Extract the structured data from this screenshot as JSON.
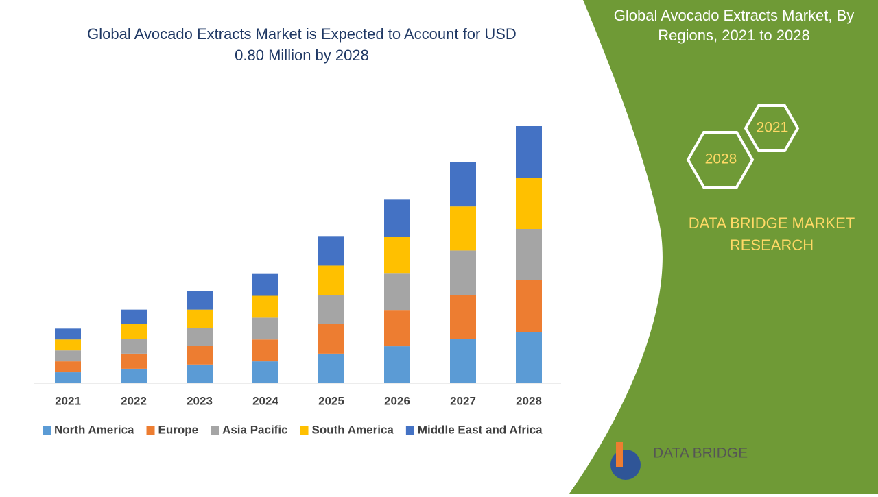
{
  "chart_data": {
    "type": "stacked-bar",
    "title": "Global Avocado Extracts Market is Expected to Account for USD 0.80 Million by 2028",
    "categories": [
      "2021",
      "2022",
      "2023",
      "2024",
      "2025",
      "2026",
      "2027",
      "2028"
    ],
    "series": [
      {
        "name": "North America",
        "color": "#5b9bd5",
        "values": [
          0.034,
          0.045,
          0.058,
          0.068,
          0.092,
          0.115,
          0.137,
          0.16
        ]
      },
      {
        "name": "Europe",
        "color": "#ed7d31",
        "values": [
          0.034,
          0.047,
          0.058,
          0.068,
          0.092,
          0.113,
          0.137,
          0.16
        ]
      },
      {
        "name": "Asia Pacific",
        "color": "#a5a5a5",
        "values": [
          0.034,
          0.045,
          0.055,
          0.068,
          0.09,
          0.115,
          0.139,
          0.16
        ]
      },
      {
        "name": "South America",
        "color": "#ffc000",
        "values": [
          0.034,
          0.047,
          0.058,
          0.068,
          0.092,
          0.113,
          0.137,
          0.16
        ]
      },
      {
        "name": "Middle East and Africa",
        "color": "#4472c4",
        "values": [
          0.034,
          0.045,
          0.058,
          0.07,
          0.092,
          0.115,
          0.137,
          0.16
        ]
      }
    ]
  },
  "panel": {
    "title": "Global Avocado Extracts Market, By Regions, 2021 to 2028",
    "hexagons": [
      "2021",
      "2028"
    ],
    "brand": "DATA BRIDGE MARKET RESEARCH",
    "logo": "DATA BRIDGE"
  }
}
